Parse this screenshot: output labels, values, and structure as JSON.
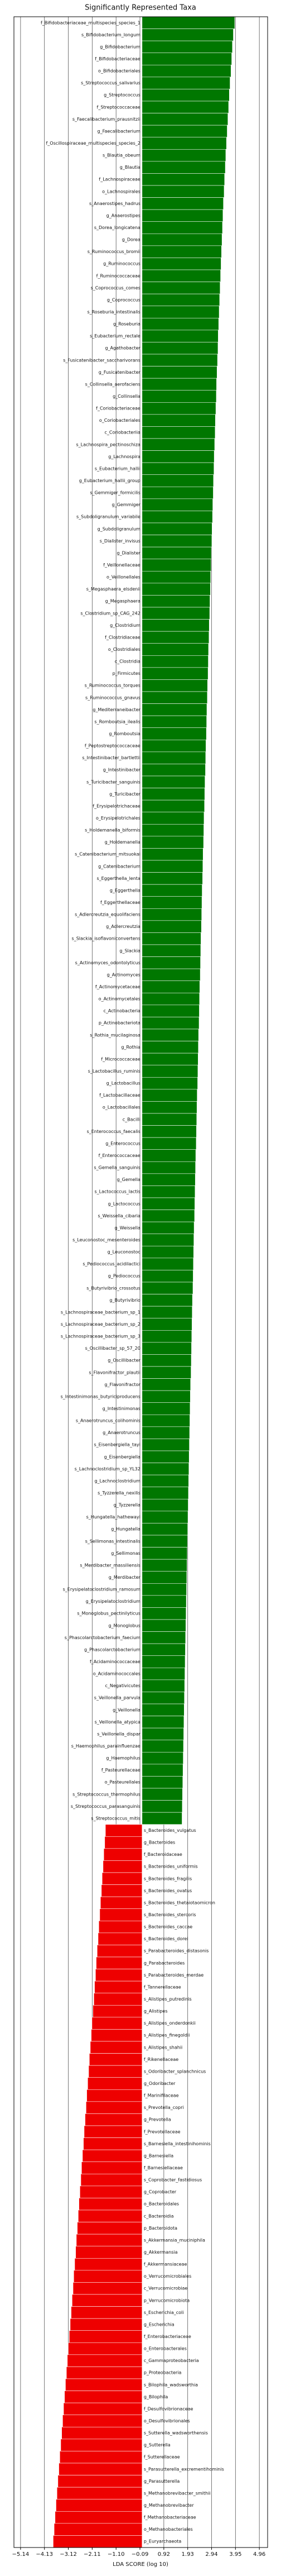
{
  "chart_data": {
    "type": "barh",
    "title": "Significantly Represented Taxa",
    "xlabel": "LDA SCORE (log 10)",
    "categories": [
      "f_Bifidobacteriaceae_multispecies_species_1",
      "s_Bifidobacterium_longum",
      "g_Bifidobacterium",
      "f_Bifidobacteriaceae",
      "o_Bifidobacteriales",
      "s_Streptococcus_salivarius",
      "g_Streptococcus",
      "f_Streptococcaceae",
      "s_Faecalibacterium_prausnitzii",
      "g_Faecalibacterium",
      "f_Oscillospiraceae_multispecies_species_2",
      "s_Blautia_obeum",
      "g_Blautia",
      "f_Lachnospiraceae",
      "o_Lachnospirales",
      "s_Anaerostipes_hadrus",
      "g_Anaerostipes",
      "s_Dorea_longicatena",
      "g_Dorea",
      "s_Ruminococcus_bromii",
      "g_Ruminococcus",
      "f_Ruminococcaceae",
      "s_Coprococcus_comes",
      "g_Coprococcus",
      "s_Roseburia_intestinalis",
      "g_Roseburia",
      "s_Eubacterium_rectale",
      "g_Agathobacter",
      "s_Fusicatenibacter_saccharivorans",
      "g_Fusicatenibacter",
      "s_Collinsella_aerofaciens",
      "g_Collinsella",
      "f_Coriobacteriaceae",
      "o_Coriobacteriales",
      "c_Coriobacteriia",
      "s_Lachnospira_pectinoschiza",
      "g_Lachnospira",
      "s_Eubacterium_hallii",
      "g_Eubacterium_hallii_group",
      "s_Gemmiger_formicilis",
      "g_Gemmiger",
      "s_Subdoligranulum_variabile",
      "g_Subdoligranulum",
      "s_Dialister_invisus",
      "g_Dialister",
      "f_Veillonellaceae",
      "o_Veillonellales",
      "s_Megasphaera_elsdenii",
      "g_Megasphaera",
      "s_Clostridium_sp_CAG_242",
      "g_Clostridium",
      "f_Clostridiaceae",
      "o_Clostridiales",
      "c_Clostridia",
      "p_Firmicutes",
      "s_Ruminococcus_torques",
      "s_Ruminococcus_gnavus",
      "g_Mediterraneibacter",
      "s_Romboutsia_ilealis",
      "g_Romboutsia",
      "f_Peptostreptococcaceae",
      "s_Intestinibacter_bartlettii",
      "g_Intestinibacter",
      "s_Turicibacter_sanguinis",
      "g_Turicibacter",
      "f_Erysipelotrichaceae",
      "o_Erysipelotrichales",
      "s_Holdemanella_biformis",
      "g_Holdemanella",
      "s_Catenibacterium_mitsuokai",
      "g_Catenibacterium",
      "s_Eggerthella_lenta",
      "g_Eggerthella",
      "f_Eggerthellaceae",
      "s_Adlercreutzia_equolifaciens",
      "g_Adlercreutzia",
      "s_Slackia_isoflavoniconvertens",
      "g_Slackia",
      "s_Actinomyces_odontolyticus",
      "g_Actinomyces",
      "f_Actinomycetaceae",
      "o_Actinomycetales",
      "c_Actinobacteria",
      "p_Actinobacteriota",
      "s_Rothia_mucilaginosa",
      "g_Rothia",
      "f_Micrococcaceae",
      "s_Lactobacillus_ruminis",
      "g_Lactobacillus",
      "f_Lactobacillaceae",
      "o_Lactobacillales",
      "c_Bacilli",
      "s_Enterococcus_faecalis",
      "g_Enterococcus",
      "f_Enterococcaceae",
      "s_Gemella_sanguinis",
      "g_Gemella",
      "s_Lactococcus_lactis",
      "g_Lactococcus",
      "s_Weissella_cibaria",
      "g_Weissella",
      "s_Leuconostoc_mesenteroides",
      "g_Leuconostoc",
      "s_Pediococcus_acidilactici",
      "g_Pediococcus",
      "s_Butyrivibrio_crossotus",
      "g_Butyrivibrio",
      "s_Lachnospiraceae_bacterium_sp_1",
      "s_Lachnospiraceae_bacterium_sp_2",
      "s_Lachnospiraceae_bacterium_sp_3",
      "s_Oscillibacter_sp_57_20",
      "g_Oscillibacter",
      "s_Flavonifractor_plautii",
      "g_Flavonifractor",
      "s_Intestinimonas_butyriciproducens",
      "g_Intestinimonas",
      "s_Anaerotruncus_colihominis",
      "g_Anaerotruncus",
      "s_Eisenbergiella_tayi",
      "g_Eisenbergiella",
      "s_Lachnoclostridium_sp_YL32",
      "g_Lachnoclostridium",
      "s_Tyzzerella_nexilis",
      "g_Tyzzerella",
      "s_Hungatella_hathewayi",
      "g_Hungatella",
      "s_Sellimonas_intestinalis",
      "g_Sellimonas",
      "s_Merdibacter_massiliensis",
      "g_Merdibacter",
      "s_Erysipelatoclostridium_ramosum",
      "g_Erysipelatoclostridium",
      "s_Monoglobus_pectinilyticus",
      "g_Monoglobus",
      "s_Phascolarctobacterium_faecium",
      "g_Phascolarctobacterium",
      "f_Acidaminococcaceae",
      "o_Acidaminococcales",
      "c_Negativicutes",
      "s_Veillonella_parvula",
      "g_Veillonella",
      "s_Veillonella_atypica",
      "s_Veillonella_dispar",
      "s_Haemophilus_parainfluenzae",
      "g_Haemophilus",
      "f_Pasteurellaceae",
      "o_Pasteurellales",
      "s_Streptococcus_thermophilus",
      "s_Streptococcus_parasanguinis",
      "s_Streptococcus_mitis",
      "s_Bacteroides_vulgatus",
      "g_Bacteroides",
      "f_Bacteroidaceae",
      "s_Bacteroides_uniformis",
      "s_Bacteroides_fragilis",
      "s_Bacteroides_ovatus",
      "s_Bacteroides_thetaiotaomicron",
      "s_Bacteroides_stercoris",
      "s_Bacteroides_caccae",
      "s_Bacteroides_dorei",
      "s_Parabacteroides_distasonis",
      "g_Parabacteroides",
      "s_Parabacteroides_merdae",
      "f_Tannerellaceae",
      "s_Alistipes_putredinis",
      "g_Alistipes",
      "s_Alistipes_onderdonkii",
      "s_Alistipes_finegoldii",
      "s_Alistipes_shahii",
      "f_Rikenellaceae",
      "s_Odoribacter_splanchnicus",
      "g_Odoribacter",
      "f_Marinifilaceae",
      "s_Prevotella_copri",
      "g_Prevotella",
      "f_Prevotellaceae",
      "s_Barnesiella_intestinihominis",
      "g_Barnesiella",
      "f_Barnesiellaceae",
      "s_Coprobacter_fastidiosus",
      "g_Coprobacter",
      "o_Bacteroidales",
      "c_Bacteroidia",
      "p_Bacteroidota",
      "s_Akkermansia_muciniphila",
      "g_Akkermansia",
      "f_Akkermansiaceae",
      "o_Verrucomicrobiales",
      "c_Verrucomicrobiae",
      "p_Verrucomicrobiota",
      "s_Escherichia_coli",
      "g_Escherichia",
      "f_Enterobacteriaceae",
      "o_Enterobacterales",
      "c_Gammaproteobacteria",
      "p_Proteobacteria",
      "s_Bilophila_wadsworthia",
      "g_Bilophila",
      "f_Desulfovibrionaceae",
      "o_Desulfovibrionales",
      "s_Sutterella_wadsworthensis",
      "g_Sutterella",
      "f_Sutterellaceae",
      "s_Parasutterella_excrementihominis",
      "g_Parasutterella",
      "s_Methanobrevibacter_smithii",
      "g_Methanobrevibacter",
      "f_Methanobacteriaceae",
      "o_Methanobacteriales",
      "p_Euryarchaeota"
    ],
    "values": [
      3.92,
      3.86,
      3.82,
      3.79,
      3.76,
      3.72,
      3.69,
      3.66,
      3.63,
      3.6,
      3.57,
      3.54,
      3.52,
      3.49,
      3.47,
      3.44,
      3.42,
      3.4,
      3.38,
      3.36,
      3.34,
      3.32,
      3.3,
      3.28,
      3.26,
      3.24,
      3.22,
      3.21,
      3.19,
      3.17,
      3.15,
      3.14,
      3.12,
      3.1,
      3.09,
      3.07,
      3.05,
      3.04,
      3.02,
      3.01,
      2.99,
      2.98,
      2.96,
      2.95,
      2.93,
      2.92,
      2.9,
      2.89,
      2.87,
      2.86,
      2.84,
      2.83,
      2.81,
      2.8,
      2.79,
      2.77,
      2.76,
      2.74,
      2.73,
      2.72,
      2.7,
      2.69,
      2.68,
      2.66,
      2.65,
      2.64,
      2.62,
      2.61,
      2.6,
      2.58,
      2.57,
      2.56,
      2.54,
      2.53,
      2.52,
      2.51,
      2.49,
      2.48,
      2.47,
      2.46,
      2.44,
      2.43,
      2.42,
      2.41,
      2.39,
      2.38,
      2.37,
      2.36,
      2.35,
      2.33,
      2.32,
      2.31,
      2.3,
      2.29,
      2.27,
      2.26,
      2.25,
      2.24,
      2.23,
      2.22,
      2.2,
      2.19,
      2.18,
      2.17,
      2.16,
      2.15,
      2.13,
      2.12,
      2.11,
      2.1,
      2.09,
      2.08,
      2.07,
      2.05,
      2.04,
      2.03,
      2.02,
      2.01,
      2.0,
      1.99,
      1.98,
      1.97,
      1.96,
      1.95,
      1.94,
      1.93,
      1.92,
      1.91,
      1.9,
      1.89,
      1.88,
      1.87,
      1.86,
      1.85,
      1.84,
      1.83,
      1.82,
      1.81,
      1.8,
      1.79,
      1.78,
      1.77,
      1.76,
      1.75,
      1.74,
      1.73,
      1.72,
      1.71,
      1.7,
      1.69,
      -1.55,
      -1.58,
      -1.62,
      -1.65,
      -1.69,
      -1.72,
      -1.76,
      -1.79,
      -1.83,
      -1.86,
      -1.9,
      -1.94,
      -1.97,
      -2.01,
      -2.04,
      -2.08,
      -2.12,
      -2.15,
      -2.19,
      -2.23,
      -2.26,
      -2.3,
      -2.34,
      -2.37,
      -2.41,
      -2.45,
      -2.48,
      -2.52,
      -2.56,
      -2.59,
      -2.63,
      -2.67,
      -2.7,
      -2.74,
      -2.78,
      -2.81,
      -2.85,
      -2.89,
      -2.92,
      -2.96,
      -3.0,
      -3.04,
      -3.08,
      -3.12,
      -3.16,
      -3.2,
      -3.24,
      -3.28,
      -3.32,
      -3.36,
      -3.4,
      -3.44,
      -3.48,
      -3.52,
      -3.56,
      -3.6,
      -3.64,
      -3.68,
      -3.72,
      -3.76
    ],
    "positive_color": "#007700",
    "negative_color": "#ee0000",
    "xlim": [
      -5.42,
      5.31
    ],
    "xticks": [
      {
        "value": -5.14,
        "label": "−5.14"
      },
      {
        "value": -4.13,
        "label": "−4.13"
      },
      {
        "value": -3.12,
        "label": "−3.12"
      },
      {
        "value": -2.11,
        "label": "−2.11"
      },
      {
        "value": -1.1,
        "label": "−1.10"
      },
      {
        "value": -0.09,
        "label": "−0.09"
      },
      0.92,
      1.93,
      2.94,
      3.95,
      4.96
    ],
    "grid": true
  }
}
